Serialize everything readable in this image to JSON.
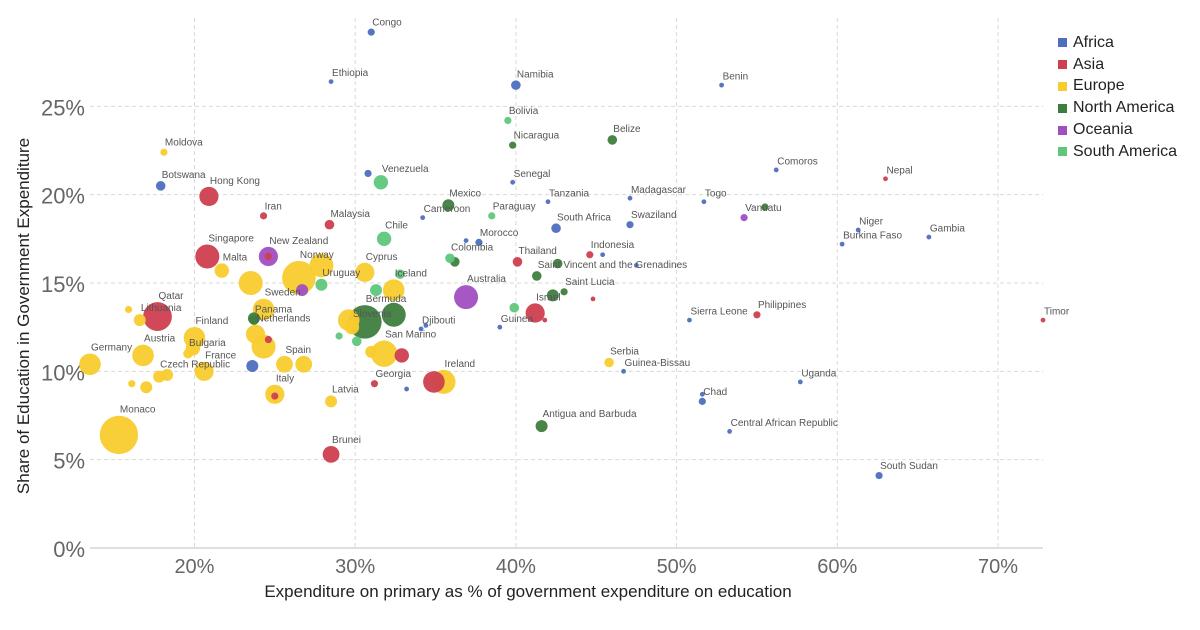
{
  "chart_data": {
    "type": "scatter",
    "xlabel": "Expenditure on primary as % of government expenditure on education",
    "ylabel": "Share of Education in Government Expenditure",
    "xlim": [
      13.5,
      72.8
    ],
    "ylim": [
      0,
      30
    ],
    "x_ticks": [
      {
        "v": 20,
        "label": "20%"
      },
      {
        "v": 30,
        "label": "30%"
      },
      {
        "v": 40,
        "label": "40%"
      },
      {
        "v": 50,
        "label": "50%"
      },
      {
        "v": 60,
        "label": "60%"
      },
      {
        "v": 70,
        "label": "70%"
      }
    ],
    "y_ticks": [
      {
        "v": 0,
        "label": "0%"
      },
      {
        "v": 5,
        "label": "5%"
      },
      {
        "v": 10,
        "label": "10%"
      },
      {
        "v": 15,
        "label": "15%"
      },
      {
        "v": 20,
        "label": "20%"
      },
      {
        "v": 25,
        "label": "25%"
      }
    ],
    "grid": true,
    "legend_position": "top-right",
    "colors": {
      "Africa": "#4e6fbf",
      "Asia": "#cf3f4f",
      "Europe": "#f9cc2e",
      "North America": "#3f7d3f",
      "Oceania": "#a04fc0",
      "South America": "#5ec77b"
    },
    "legend": [
      "Africa",
      "Asia",
      "Europe",
      "North America",
      "Oceania",
      "South America"
    ],
    "points": [
      {
        "name": "Congo",
        "region": "Africa",
        "x": 31.0,
        "y": 29.2,
        "size": 3
      },
      {
        "name": "Ethiopia",
        "region": "Africa",
        "x": 28.5,
        "y": 26.4,
        "size": 2
      },
      {
        "name": "Namibia",
        "region": "Africa",
        "x": 40.0,
        "y": 26.2,
        "size": 4
      },
      {
        "name": "Benin",
        "region": "Africa",
        "x": 52.8,
        "y": 26.2,
        "size": 2
      },
      {
        "name": "Moldova",
        "region": "Europe",
        "x": 18.1,
        "y": 22.4,
        "size": 3
      },
      {
        "name": "Bolivia",
        "region": "South America",
        "x": 39.5,
        "y": 24.2,
        "size": 3
      },
      {
        "name": "Nicaragua",
        "region": "North America",
        "x": 39.8,
        "y": 22.8,
        "size": 3
      },
      {
        "name": "Belize",
        "region": "North America",
        "x": 46.0,
        "y": 23.1,
        "size": 4
      },
      {
        "name": "Botswana",
        "region": "Africa",
        "x": 17.9,
        "y": 20.5,
        "size": 4
      },
      {
        "name": "Hong Kong",
        "region": "Asia",
        "x": 20.9,
        "y": 19.9,
        "size": 8
      },
      {
        "name": "Venezuela",
        "region": "South America",
        "x": 31.6,
        "y": 20.7,
        "size": 6
      },
      {
        "name": "Senegal",
        "region": "Africa",
        "x": 39.8,
        "y": 20.7,
        "size": 2
      },
      {
        "name": "Comoros",
        "region": "Africa",
        "x": 56.2,
        "y": 21.4,
        "size": 2
      },
      {
        "name": "Nepal",
        "region": "Asia",
        "x": 63.0,
        "y": 20.9,
        "size": 2
      },
      {
        "name": "Tanzania",
        "region": "Africa",
        "x": 42.0,
        "y": 19.6,
        "size": 2
      },
      {
        "name": "Madagascar",
        "region": "Africa",
        "x": 47.1,
        "y": 19.8,
        "size": 2
      },
      {
        "name": "Togo",
        "region": "Africa",
        "x": 51.7,
        "y": 19.6,
        "size": 2
      },
      {
        "name": "Mexico",
        "region": "North America",
        "x": 35.8,
        "y": 19.4,
        "size": 5
      },
      {
        "name": "Iran",
        "region": "Asia",
        "x": 24.3,
        "y": 18.8,
        "size": 3
      },
      {
        "name": "Malaysia",
        "region": "Asia",
        "x": 28.4,
        "y": 18.3,
        "size": 4
      },
      {
        "name": "Cameroon",
        "region": "Africa",
        "x": 34.2,
        "y": 18.7,
        "size": 2
      },
      {
        "name": "Paraguay",
        "region": "South America",
        "x": 38.5,
        "y": 18.8,
        "size": 3
      },
      {
        "name": "Vanuatu",
        "region": "Oceania",
        "x": 54.2,
        "y": 18.7,
        "size": 3
      },
      {
        "name": "South Africa",
        "region": "Africa",
        "x": 42.5,
        "y": 18.1,
        "size": 4
      },
      {
        "name": "Swaziland",
        "region": "Africa",
        "x": 47.1,
        "y": 18.3,
        "size": 3
      },
      {
        "name": "Niger",
        "region": "Africa",
        "x": 61.3,
        "y": 18.0,
        "size": 2
      },
      {
        "name": "Gambia",
        "region": "Africa",
        "x": 65.7,
        "y": 17.6,
        "size": 2
      },
      {
        "name": "Burkina Faso",
        "region": "Africa",
        "x": 60.3,
        "y": 17.2,
        "size": 2
      },
      {
        "name": "Chile",
        "region": "South America",
        "x": 31.8,
        "y": 17.5,
        "size": 6
      },
      {
        "name": "Morocco",
        "region": "Africa",
        "x": 37.7,
        "y": 17.3,
        "size": 3
      },
      {
        "name": "Singapore",
        "region": "Asia",
        "x": 20.8,
        "y": 16.5,
        "size": 10
      },
      {
        "name": "New Zealand",
        "region": "Oceania",
        "x": 24.6,
        "y": 16.5,
        "size": 8
      },
      {
        "name": "Colombia",
        "region": "South America",
        "x": 35.9,
        "y": 16.4,
        "size": 4
      },
      {
        "name": "Indonesia",
        "region": "Asia",
        "x": 44.6,
        "y": 16.6,
        "size": 3
      },
      {
        "name": "Thailand",
        "region": "Asia",
        "x": 40.1,
        "y": 16.2,
        "size": 4
      },
      {
        "name": "Malta",
        "region": "Europe",
        "x": 21.7,
        "y": 15.7,
        "size": 6
      },
      {
        "name": "Norway",
        "region": "Europe",
        "x": 26.5,
        "y": 15.3,
        "size": 14
      },
      {
        "name": "Cyprus",
        "region": "Europe",
        "x": 30.6,
        "y": 15.6,
        "size": 8
      },
      {
        "name": "Saint Vincent and the Grenadines",
        "region": "North America",
        "x": 41.3,
        "y": 15.4,
        "size": 4
      },
      {
        "name": "Iceland",
        "region": "Europe",
        "x": 32.4,
        "y": 14.6,
        "size": 9
      },
      {
        "name": "Uruguay",
        "region": "South America",
        "x": 27.9,
        "y": 14.9,
        "size": 5
      },
      {
        "name": "Australia",
        "region": "Oceania",
        "x": 36.9,
        "y": 14.2,
        "size": 10
      },
      {
        "name": "Saint Lucia",
        "region": "North America",
        "x": 43.0,
        "y": 14.5,
        "size": 3
      },
      {
        "name": "Qatar",
        "region": "Asia",
        "x": 17.7,
        "y": 13.1,
        "size": 12
      },
      {
        "name": "Lithuania",
        "region": "Europe",
        "x": 16.6,
        "y": 12.9,
        "size": 5
      },
      {
        "name": "Sweden",
        "region": "Europe",
        "x": 24.3,
        "y": 13.5,
        "size": 9
      },
      {
        "name": "Panama",
        "region": "North America",
        "x": 23.7,
        "y": 12.9,
        "size": 4
      },
      {
        "name": "Bermuda",
        "region": "North America",
        "x": 30.6,
        "y": 12.8,
        "size": 14
      },
      {
        "name": "Israel",
        "region": "Asia",
        "x": 41.2,
        "y": 13.3,
        "size": 8
      },
      {
        "name": "Sierra Leone",
        "region": "Africa",
        "x": 50.8,
        "y": 12.9,
        "size": 2
      },
      {
        "name": "Philippines",
        "region": "Asia",
        "x": 55.0,
        "y": 13.2,
        "size": 3
      },
      {
        "name": "Timor",
        "region": "Asia",
        "x": 72.8,
        "y": 12.9,
        "size": 2
      },
      {
        "name": "Slovenia",
        "region": "Europe",
        "x": 29.8,
        "y": 12.5,
        "size": 6
      },
      {
        "name": "Djibouti",
        "region": "Africa",
        "x": 34.1,
        "y": 12.4,
        "size": 2
      },
      {
        "name": "Guinea",
        "region": "Africa",
        "x": 39.0,
        "y": 12.5,
        "size": 2
      },
      {
        "name": "Finland",
        "region": "Europe",
        "x": 20.0,
        "y": 11.9,
        "size": 9
      },
      {
        "name": "Netherlands",
        "region": "Europe",
        "x": 23.8,
        "y": 12.1,
        "size": 8
      },
      {
        "name": "Austria",
        "region": "Europe",
        "x": 16.8,
        "y": 10.9,
        "size": 9
      },
      {
        "name": "Bulgaria",
        "region": "Europe",
        "x": 19.6,
        "y": 11.0,
        "size": 4
      },
      {
        "name": "France",
        "region": "Europe",
        "x": 20.6,
        "y": 10.0,
        "size": 8
      },
      {
        "name": "Spain",
        "region": "Europe",
        "x": 25.6,
        "y": 10.4,
        "size": 7
      },
      {
        "name": "San Marino",
        "region": "Europe",
        "x": 31.8,
        "y": 11.0,
        "size": 11
      },
      {
        "name": "Germany",
        "region": "Europe",
        "x": 13.5,
        "y": 10.4,
        "size": 9
      },
      {
        "name": "Czech Republic",
        "region": "Europe",
        "x": 17.8,
        "y": 9.7,
        "size": 5
      },
      {
        "name": "Serbia",
        "region": "Europe",
        "x": 45.8,
        "y": 10.5,
        "size": 4
      },
      {
        "name": "Guinea-Bissau",
        "region": "Africa",
        "x": 46.7,
        "y": 10.0,
        "size": 2
      },
      {
        "name": "Uganda",
        "region": "Africa",
        "x": 57.7,
        "y": 9.4,
        "size": 2
      },
      {
        "name": "Italy",
        "region": "Europe",
        "x": 25.0,
        "y": 8.7,
        "size": 8
      },
      {
        "name": "Georgia",
        "region": "Asia",
        "x": 31.2,
        "y": 9.3,
        "size": 3
      },
      {
        "name": "Ireland",
        "region": "Europe",
        "x": 35.5,
        "y": 9.4,
        "size": 10
      },
      {
        "name": "Chad",
        "region": "Africa",
        "x": 51.6,
        "y": 8.3,
        "size": 3
      },
      {
        "name": "Latvia",
        "region": "Europe",
        "x": 28.5,
        "y": 8.3,
        "size": 5
      },
      {
        "name": "Antigua and Barbuda",
        "region": "North America",
        "x": 41.6,
        "y": 6.9,
        "size": 5
      },
      {
        "name": "Central African Republic",
        "region": "Africa",
        "x": 53.3,
        "y": 6.6,
        "size": 2
      },
      {
        "name": "Monaco",
        "region": "Europe",
        "x": 15.3,
        "y": 6.4,
        "size": 16
      },
      {
        "name": "Brunei",
        "region": "Asia",
        "x": 28.5,
        "y": 5.3,
        "size": 7
      },
      {
        "name": "South Sudan",
        "region": "Africa",
        "x": 62.6,
        "y": 4.1,
        "size": 3
      }
    ],
    "unlabeled_points": [
      {
        "region": "Europe",
        "x": 15.9,
        "y": 13.5,
        "size": 3
      },
      {
        "region": "Europe",
        "x": 27.9,
        "y": 16.0,
        "size": 10
      },
      {
        "region": "Europe",
        "x": 23.5,
        "y": 15.0,
        "size": 10
      },
      {
        "region": "Europe",
        "x": 19.9,
        "y": 11.3,
        "size": 6
      },
      {
        "region": "Europe",
        "x": 17.0,
        "y": 9.1,
        "size": 5
      },
      {
        "region": "Europe",
        "x": 18.3,
        "y": 9.8,
        "size": 5
      },
      {
        "region": "Europe",
        "x": 26.8,
        "y": 10.4,
        "size": 7
      },
      {
        "region": "Europe",
        "x": 24.3,
        "y": 11.4,
        "size": 10
      },
      {
        "region": "Europe",
        "x": 29.6,
        "y": 12.9,
        "size": 9
      },
      {
        "region": "Europe",
        "x": 31.0,
        "y": 11.1,
        "size": 5
      },
      {
        "region": "Asia",
        "x": 24.6,
        "y": 11.8,
        "size": 3
      },
      {
        "region": "Asia",
        "x": 32.9,
        "y": 10.9,
        "size": 6
      },
      {
        "region": "Asia",
        "x": 34.9,
        "y": 9.4,
        "size": 9
      },
      {
        "region": "Asia",
        "x": 25.0,
        "y": 8.6,
        "size": 3
      },
      {
        "region": "Asia",
        "x": 44.8,
        "y": 14.1,
        "size": 2
      },
      {
        "region": "Asia",
        "x": 41.8,
        "y": 12.9,
        "size": 2
      },
      {
        "region": "Africa",
        "x": 30.8,
        "y": 21.2,
        "size": 3
      },
      {
        "region": "Africa",
        "x": 23.6,
        "y": 10.3,
        "size": 5
      },
      {
        "region": "Africa",
        "x": 33.2,
        "y": 9.0,
        "size": 2
      },
      {
        "region": "Africa",
        "x": 45.4,
        "y": 16.6,
        "size": 2
      },
      {
        "region": "Africa",
        "x": 47.5,
        "y": 16.0,
        "size": 2
      },
      {
        "region": "Africa",
        "x": 36.9,
        "y": 17.4,
        "size": 2
      },
      {
        "region": "Africa",
        "x": 34.4,
        "y": 12.6,
        "size": 2
      },
      {
        "region": "Africa",
        "x": 51.6,
        "y": 8.7,
        "size": 2
      },
      {
        "region": "Asia",
        "x": 24.6,
        "y": 16.5,
        "size": 3
      },
      {
        "region": "Oceania",
        "x": 26.7,
        "y": 14.6,
        "size": 5
      },
      {
        "region": "North America",
        "x": 32.4,
        "y": 13.2,
        "size": 10
      },
      {
        "region": "North America",
        "x": 36.2,
        "y": 16.2,
        "size": 4
      },
      {
        "region": "North America",
        "x": 42.6,
        "y": 16.1,
        "size": 4
      },
      {
        "region": "North America",
        "x": 55.5,
        "y": 19.3,
        "size": 3
      },
      {
        "region": "North America",
        "x": 42.3,
        "y": 14.3,
        "size": 5
      },
      {
        "region": "North America",
        "x": 23.7,
        "y": 13.0,
        "size": 5
      },
      {
        "region": "South America",
        "x": 31.3,
        "y": 14.6,
        "size": 5
      },
      {
        "region": "South America",
        "x": 32.8,
        "y": 15.5,
        "size": 4
      },
      {
        "region": "South America",
        "x": 39.9,
        "y": 13.6,
        "size": 4
      },
      {
        "region": "South America",
        "x": 29.0,
        "y": 12.0,
        "size": 3
      },
      {
        "region": "South America",
        "x": 30.1,
        "y": 11.7,
        "size": 4
      },
      {
        "region": "Europe",
        "x": 16.1,
        "y": 9.3,
        "size": 3
      }
    ]
  }
}
